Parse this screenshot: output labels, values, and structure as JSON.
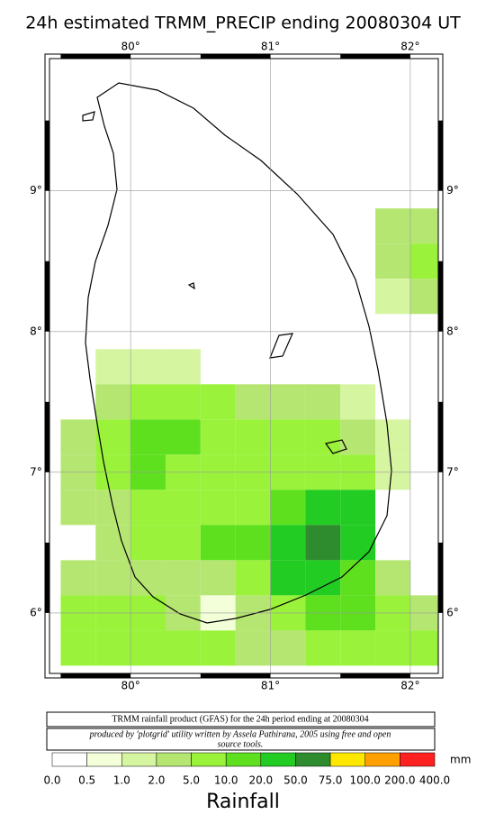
{
  "map": {
    "title": "24h estimated TRMM_PRECIP  ending 20080304 UT",
    "lon_range": [
      79.42,
      82.2
    ],
    "lat_range": [
      5.57,
      9.94
    ],
    "lon_ticks": [
      {
        "value": 80,
        "label": "80°"
      },
      {
        "value": 81,
        "label": "81°"
      },
      {
        "value": 82,
        "label": "82°"
      }
    ],
    "lat_ticks": [
      {
        "value": 9,
        "label": "9°"
      },
      {
        "value": 8,
        "label": "8°"
      },
      {
        "value": 7,
        "label": "7°"
      },
      {
        "value": 6,
        "label": "6°"
      }
    ],
    "grid": {
      "lon_start": 79.5,
      "lat_start": 8.875,
      "step": 0.25,
      "rows": [
        [
          null,
          null,
          null,
          null,
          null,
          null,
          null,
          null,
          null,
          3,
          4
        ],
        [
          null,
          null,
          null,
          null,
          null,
          null,
          null,
          null,
          null,
          4,
          6
        ],
        [
          null,
          null,
          null,
          null,
          null,
          null,
          null,
          null,
          null,
          1.5,
          2
        ],
        [
          null,
          null,
          null,
          null,
          null,
          null,
          null,
          null,
          null,
          null,
          null
        ],
        [
          null,
          1.5,
          1.5,
          1.5,
          null,
          null,
          null,
          null,
          null,
          null,
          null
        ],
        [
          null,
          2,
          5,
          8,
          6,
          3,
          3,
          2,
          1,
          null,
          null
        ],
        [
          3,
          6,
          10,
          12,
          8,
          6,
          6,
          5,
          2,
          1,
          null
        ],
        [
          3,
          6,
          10,
          8,
          6,
          6,
          8,
          8,
          6,
          1,
          null
        ],
        [
          2,
          3,
          5,
          6,
          6,
          8,
          15,
          25,
          20,
          null,
          null
        ],
        [
          null,
          3,
          5,
          6,
          10,
          15,
          25,
          60,
          20,
          null,
          null
        ],
        [
          4,
          3,
          2,
          3,
          4,
          8,
          20,
          30,
          15,
          3,
          null
        ],
        [
          5,
          5,
          5,
          3,
          0.7,
          3,
          6,
          15,
          12,
          6,
          2
        ],
        [
          6,
          6,
          6,
          6,
          6,
          4,
          4,
          6,
          6,
          6,
          6
        ]
      ]
    }
  },
  "footer": {
    "product": "TRMM rainfall product (GFAS) for the 24h period ending at 20080304",
    "credit": [
      "produced by 'plotgrid' utility written by Assela Pathirana, 2005 using free and open",
      "source tools."
    ]
  },
  "legend": {
    "unit": "mm",
    "title": "Rainfall",
    "ticks": [
      {
        "value": 0,
        "label": "0.0"
      },
      {
        "value": 0.5,
        "label": "0.5"
      },
      {
        "value": 1,
        "label": "1.0"
      },
      {
        "value": 2,
        "label": "2.0"
      },
      {
        "value": 5,
        "label": "5.0"
      },
      {
        "value": 10,
        "label": "10.0"
      },
      {
        "value": 20,
        "label": "20.0"
      },
      {
        "value": 50,
        "label": "50.0"
      },
      {
        "value": 75,
        "label": "75.0"
      },
      {
        "value": 100,
        "label": "100.0"
      },
      {
        "value": 200,
        "label": "200.0"
      },
      {
        "value": 400,
        "label": "400.0"
      }
    ],
    "colors": [
      "#ffffff",
      "#f2ffd8",
      "#d6f5a0",
      "#b6e672",
      "#9af23a",
      "#5ee01e",
      "#22cc22",
      "#2e8b2e",
      "#ffe800",
      "#ffa000",
      "#ff2020"
    ]
  }
}
